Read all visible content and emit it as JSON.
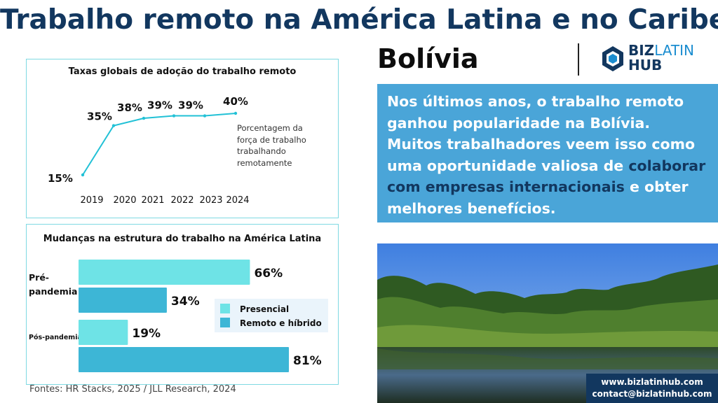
{
  "title": "Trabalho remoto na América Latina e no Caribe:",
  "subtitle": "Bolívia",
  "logo": {
    "part1": "BIZ",
    "part2": "LATIN",
    "part3": "HUB",
    "icon": "bizlatinhub-logo-icon"
  },
  "chart1": {
    "title": "Taxas globais de adoção do trabalho remoto",
    "note_lines": [
      "Porcentagem da",
      "força de trabalho",
      "trabalhando",
      "remotamente"
    ]
  },
  "chart2": {
    "title": "Mudanças na estrutura do trabalho na América Latina",
    "groups": [
      "Pré-pandemia",
      "Pós-pandemia"
    ],
    "group1_lines": [
      "Pré-",
      "pandemia"
    ]
  },
  "chart_data": [
    {
      "type": "line",
      "title": "Taxas globais de adoção do trabalho remoto",
      "x": [
        "2019",
        "2020",
        "2021",
        "2022",
        "2023",
        "2024"
      ],
      "values": [
        15,
        35,
        38,
        39,
        39,
        40
      ],
      "labels": [
        "15%",
        "35%",
        "38%",
        "39%",
        "39%",
        "40%"
      ],
      "annotation": "Porcentagem da força de trabalho trabalhando remotamente",
      "color": "#22c1d6"
    },
    {
      "type": "bar",
      "title": "Mudanças na estrutura do trabalho na América Latina",
      "categories": [
        "Pré-pandemia",
        "Pós-pandemia"
      ],
      "series": [
        {
          "name": "Presencial",
          "values": [
            66,
            19
          ],
          "color": "#6ee3e6"
        },
        {
          "name": "Remoto e híbrido",
          "values": [
            34,
            81
          ],
          "color": "#3db6d6"
        }
      ],
      "unit": "%",
      "legend": "right"
    }
  ],
  "fontes": "Fontes: HR Stacks, 2025 / JLL Research, 2024",
  "paragraph": {
    "part1": "Nos últimos anos, o trabalho remoto ganhou popularidade na Bolívia. Muitos trabalhadores veem isso como uma oportunidade valiosa de ",
    "highlight": "colaborar com empresas internacionais",
    "part2": " e obter melhores benefícios."
  },
  "contact": {
    "website": "www.bizlatinhub.com",
    "email": "contact@bizlatinhub.com"
  },
  "colors": {
    "title": "#12375f",
    "box": "#4aa5d8",
    "line": "#22c1d6",
    "presencial": "#6ee3e6",
    "remoto": "#3db6d6"
  }
}
